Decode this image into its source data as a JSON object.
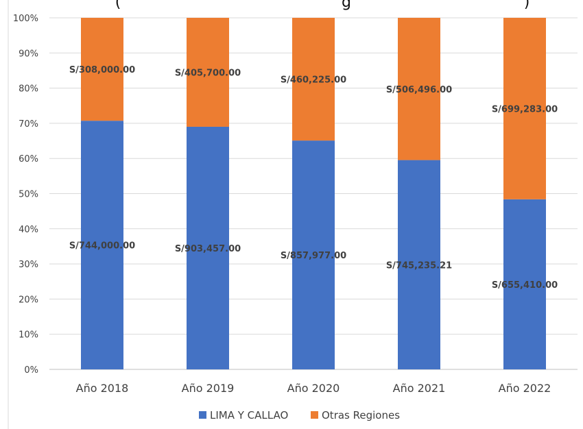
{
  "chart_data": {
    "type": "bar",
    "stacked": "percent",
    "title": "(                                              g                                    )",
    "categories": [
      "Año 2018",
      "Año 2019",
      "Año 2020",
      "Año 2021",
      "Año 2022"
    ],
    "series": [
      {
        "name": "LIMA Y CALLAO",
        "color": "#4472C4",
        "values": [
          744000.0,
          903457.0,
          857977.0,
          745235.21,
          655410.0
        ],
        "labels": [
          "S/744,000.00",
          "S/903,457.00",
          "S/857,977.00",
          "S/745,235.21",
          "S/655,410.00"
        ]
      },
      {
        "name": "Otras Regiones",
        "color": "#ED7D31",
        "values": [
          308000.0,
          405700.0,
          460225.0,
          506496.0,
          699283.0
        ],
        "labels": [
          "S/308,000.00",
          "S/405,700.00",
          "S/460,225.00",
          "S/506,496.00",
          "S/699,283.00"
        ]
      }
    ],
    "yticks": [
      "0%",
      "10%",
      "20%",
      "30%",
      "40%",
      "50%",
      "60%",
      "70%",
      "80%",
      "90%",
      "100%"
    ],
    "ylim": [
      0,
      100
    ],
    "grid": true,
    "legend": "bottom"
  }
}
